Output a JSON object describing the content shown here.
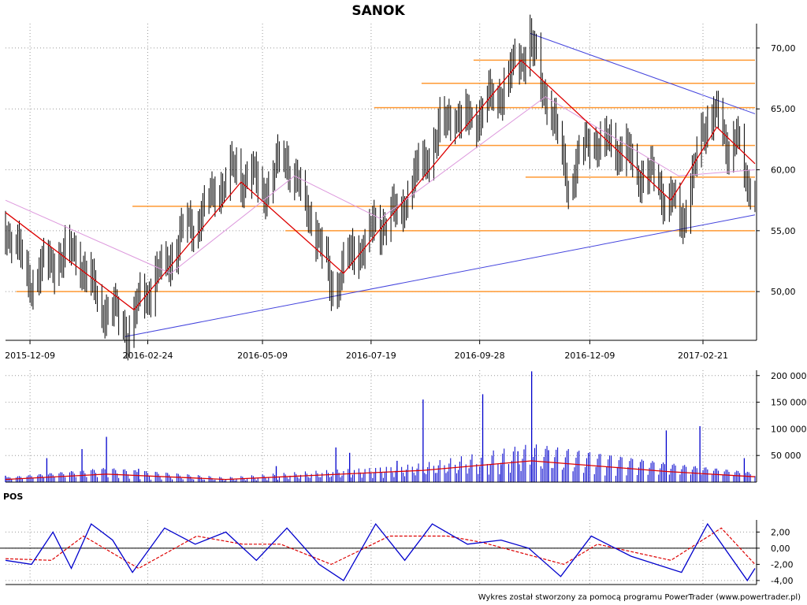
{
  "title": "SANOK",
  "footer": "Wykres został stworzony za pomocą programu PowerTrader (www.powertrader.pl)",
  "colors": {
    "candles": "#000000",
    "ma_short": "#dd0000",
    "ma_long": "#dd99dd",
    "levels": "#ff9933",
    "trendlines": "#4444dd",
    "volume": "#0000cc",
    "volume_ma": "#dd0000",
    "pos": "#0000cc",
    "pos_signal": "#dd0000",
    "grid": "#999999"
  },
  "chart_data": [
    {
      "type": "candlestick",
      "name": "price",
      "x_dates": [
        "2015-12-09",
        "2016-02-24",
        "2016-05-09",
        "2016-07-19",
        "2016-09-28",
        "2016-12-09",
        "2017-02-21"
      ],
      "y_ticks": [
        "70,00",
        "65,00",
        "60,00",
        "55,00",
        "50,00"
      ],
      "ylim": [
        46,
        72
      ],
      "date_range": [
        "2015-11-23",
        "2017-03-27"
      ],
      "grid": true,
      "key_points": [
        {
          "date": "2015-11-23",
          "close": 55.5
        },
        {
          "date": "2015-12-09",
          "close": 51
        },
        {
          "date": "2016-01-05",
          "close": 53.5
        },
        {
          "date": "2016-01-25",
          "close": 49
        },
        {
          "date": "2016-02-10",
          "close": 47
        },
        {
          "date": "2016-02-24",
          "close": 50
        },
        {
          "date": "2016-03-20",
          "close": 55
        },
        {
          "date": "2016-04-05",
          "close": 57.5
        },
        {
          "date": "2016-04-20",
          "close": 60
        },
        {
          "date": "2016-05-09",
          "close": 58.5
        },
        {
          "date": "2016-05-25",
          "close": 61
        },
        {
          "date": "2016-06-10",
          "close": 56
        },
        {
          "date": "2016-06-23",
          "close": 50.5
        },
        {
          "date": "2016-07-05",
          "close": 52.5
        },
        {
          "date": "2016-07-19",
          "close": 55
        },
        {
          "date": "2016-08-05",
          "close": 56.5
        },
        {
          "date": "2016-08-20",
          "close": 60
        },
        {
          "date": "2016-09-05",
          "close": 64
        },
        {
          "date": "2016-09-28",
          "close": 64.5
        },
        {
          "date": "2016-10-20",
          "close": 68
        },
        {
          "date": "2016-10-31",
          "close": 70.5
        },
        {
          "date": "2016-11-15",
          "close": 64
        },
        {
          "date": "2016-11-25",
          "close": 59
        },
        {
          "date": "2016-12-09",
          "close": 62.5
        },
        {
          "date": "2016-12-25",
          "close": 62
        },
        {
          "date": "2017-01-15",
          "close": 59.5
        },
        {
          "date": "2017-01-30",
          "close": 58
        },
        {
          "date": "2017-02-07",
          "close": 55.5
        },
        {
          "date": "2017-02-21",
          "close": 63
        },
        {
          "date": "2017-02-28",
          "close": 65.5
        },
        {
          "date": "2017-03-08",
          "close": 61
        },
        {
          "date": "2017-03-15",
          "close": 64
        },
        {
          "date": "2017-03-22",
          "close": 57.5
        },
        {
          "date": "2017-03-27",
          "close": 58.5
        }
      ],
      "ma_short": [
        {
          "date": "2015-11-23",
          "value": 56.5
        },
        {
          "date": "2016-02-15",
          "value": 48.5
        },
        {
          "date": "2016-04-25",
          "value": 59
        },
        {
          "date": "2016-07-01",
          "value": 51.5
        },
        {
          "date": "2016-10-25",
          "value": 69
        },
        {
          "date": "2017-01-31",
          "value": 57.5
        },
        {
          "date": "2017-03-02",
          "value": 63.5
        },
        {
          "date": "2017-03-27",
          "value": 60.5
        }
      ],
      "ma_long": [
        {
          "date": "2015-11-23",
          "value": 57.5
        },
        {
          "date": "2016-03-10",
          "value": 51.5
        },
        {
          "date": "2016-05-30",
          "value": 59.5
        },
        {
          "date": "2016-07-25",
          "value": 56
        },
        {
          "date": "2016-11-10",
          "value": 66
        },
        {
          "date": "2017-02-05",
          "value": 59.5
        },
        {
          "date": "2017-03-27",
          "value": 60
        }
      ],
      "horizontal_levels": [
        {
          "value": 69.0,
          "from": "2016-09-24"
        },
        {
          "value": 67.1,
          "from": "2016-08-21"
        },
        {
          "value": 65.1,
          "from": "2016-07-21"
        },
        {
          "value": 62.0,
          "from": "2016-09-01"
        },
        {
          "value": 59.4,
          "from": "2016-10-28"
        },
        {
          "value": 57.0,
          "from": "2016-02-14"
        },
        {
          "value": 55.0,
          "from": "2016-05-24"
        },
        {
          "value": 50.0,
          "from": "2015-11-30"
        }
      ],
      "trendlines": [
        {
          "from": {
            "date": "2016-02-09",
            "value": 46.3
          },
          "to": {
            "date": "2017-03-27",
            "value": 56.3
          }
        },
        {
          "from": {
            "date": "2016-10-31",
            "value": 71.2
          },
          "to": {
            "date": "2017-03-27",
            "value": 64.6
          }
        }
      ]
    },
    {
      "type": "bar",
      "name": "volume",
      "y_ticks": [
        "200 000",
        "150 000",
        "100 000",
        "50 000"
      ],
      "ylim": [
        0,
        210000
      ],
      "spikes": [
        {
          "date": "2015-11-23",
          "value": 12000
        },
        {
          "date": "2015-12-20",
          "value": 45000
        },
        {
          "date": "2016-01-12",
          "value": 62000
        },
        {
          "date": "2016-01-28",
          "value": 85000
        },
        {
          "date": "2016-02-18",
          "value": 25000
        },
        {
          "date": "2016-05-18",
          "value": 30000
        },
        {
          "date": "2016-06-26",
          "value": 65000
        },
        {
          "date": "2016-07-05",
          "value": 55000
        },
        {
          "date": "2016-08-05",
          "value": 40000
        },
        {
          "date": "2016-08-22",
          "value": 155000
        },
        {
          "date": "2016-09-30",
          "value": 165000
        },
        {
          "date": "2016-10-12",
          "value": 32000
        },
        {
          "date": "2016-10-23",
          "value": 58000
        },
        {
          "date": "2016-11-01",
          "value": 208000
        },
        {
          "date": "2016-11-12",
          "value": 60000
        },
        {
          "date": "2017-01-28",
          "value": 97000
        },
        {
          "date": "2017-02-19",
          "value": 105000
        },
        {
          "date": "2017-03-20",
          "value": 45000
        }
      ],
      "ma": [
        {
          "date": "2015-11-23",
          "value": 5000
        },
        {
          "date": "2016-01-28",
          "value": 15000
        },
        {
          "date": "2016-04-15",
          "value": 5000
        },
        {
          "date": "2016-08-22",
          "value": 22000
        },
        {
          "date": "2016-11-01",
          "value": 40000
        },
        {
          "date": "2017-01-28",
          "value": 20000
        },
        {
          "date": "2017-03-27",
          "value": 10000
        }
      ]
    },
    {
      "type": "line",
      "name": "POS",
      "y_ticks": [
        "2,00",
        "0,00",
        "-2,00",
        "-4,00"
      ],
      "ylim": [
        -4.5,
        3.5
      ],
      "series": [
        {
          "values": [
            {
              "date": "2015-11-23",
              "value": -1.5
            },
            {
              "date": "2015-12-10",
              "value": -2
            },
            {
              "date": "2015-12-24",
              "value": 2
            },
            {
              "date": "2016-01-05",
              "value": -2.5
            },
            {
              "date": "2016-01-18",
              "value": 3
            },
            {
              "date": "2016-02-01",
              "value": 1
            },
            {
              "date": "2016-02-14",
              "value": -3
            },
            {
              "date": "2016-03-06",
              "value": 2.5
            },
            {
              "date": "2016-03-26",
              "value": 0.5
            },
            {
              "date": "2016-04-15",
              "value": 2
            },
            {
              "date": "2016-05-05",
              "value": -1.5
            },
            {
              "date": "2016-05-25",
              "value": 2.5
            },
            {
              "date": "2016-06-15",
              "value": -2
            },
            {
              "date": "2016-07-01",
              "value": -4
            },
            {
              "date": "2016-07-22",
              "value": 3
            },
            {
              "date": "2016-08-10",
              "value": -1.5
            },
            {
              "date": "2016-08-28",
              "value": 3
            },
            {
              "date": "2016-09-20",
              "value": 0.5
            },
            {
              "date": "2016-10-12",
              "value": 1
            },
            {
              "date": "2016-10-30",
              "value": 0
            },
            {
              "date": "2016-11-20",
              "value": -3.5
            },
            {
              "date": "2016-12-10",
              "value": 1.5
            },
            {
              "date": "2017-01-05",
              "value": -1
            },
            {
              "date": "2017-02-07",
              "value": -3
            },
            {
              "date": "2017-02-24",
              "value": 3
            },
            {
              "date": "2017-03-22",
              "value": -4
            },
            {
              "date": "2017-03-27",
              "value": -2.5
            }
          ]
        },
        {
          "values": [
            {
              "date": "2015-11-23",
              "value": -1.3
            },
            {
              "date": "2015-12-23",
              "value": -1.5
            },
            {
              "date": "2016-01-13",
              "value": 1.5
            },
            {
              "date": "2016-02-18",
              "value": -2.5
            },
            {
              "date": "2016-03-27",
              "value": 1.5
            },
            {
              "date": "2016-04-26",
              "value": 0.5
            },
            {
              "date": "2016-05-21",
              "value": 0.5
            },
            {
              "date": "2016-06-23",
              "value": -2
            },
            {
              "date": "2016-07-31",
              "value": 1.5
            },
            {
              "date": "2016-09-07",
              "value": 1.5
            },
            {
              "date": "2016-09-30",
              "value": 0.7
            },
            {
              "date": "2016-11-22",
              "value": -2
            },
            {
              "date": "2016-12-14",
              "value": 0.5
            },
            {
              "date": "2017-01-31",
              "value": -1.5
            },
            {
              "date": "2017-03-05",
              "value": 2.5
            },
            {
              "date": "2017-03-27",
              "value": -2
            }
          ]
        }
      ],
      "panel_label": "POS"
    }
  ]
}
